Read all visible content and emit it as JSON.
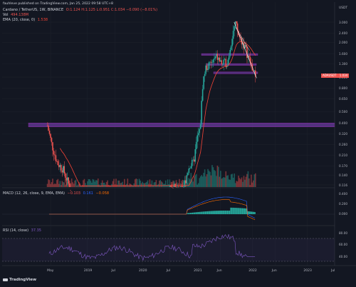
{
  "header": {
    "publisher": "fauhleve published on TradingView.com, Jan 25, 2022 09:58 UTC+8",
    "symbol": "Cardano / TetherUS, 1W, BINANCE",
    "ohlc": "O:1.124 H:1.125 L:0.951 C:1.034 −0.090 (−8.01%)",
    "vol_label": "Vol",
    "vol_value": "494.138M",
    "ema_label": "EMA (20, close, 0)",
    "ema_value": "1.538"
  },
  "price_tag": {
    "symbol": "ADAUSDT",
    "value": "1.034"
  },
  "currency": "USDT",
  "macd": {
    "label": "MACD (12, 26, close, 9, EMA, EMA)",
    "hist": "−0.103",
    "macd_value": "0.161",
    "signal_value": "−0.058",
    "ticks": [
      "0.400",
      "0.200",
      "0.000"
    ]
  },
  "rsi": {
    "label": "RSI (14, close)",
    "value": "37.35",
    "ticks": [
      "80.00",
      "60.00",
      "40.00"
    ]
  },
  "footer": {
    "brand": "TradingView"
  },
  "colors": {
    "bg": "#131722",
    "up": "#26a69a",
    "down": "#ef5350",
    "ema": "#f44336",
    "zone": "#6a3c9f",
    "macd_line": "#2962ff",
    "signal_line": "#ff6d00",
    "rsi_line": "#7e57c2",
    "white": "#ffffff"
  },
  "chart_data": [
    {
      "type": "line",
      "title": "Cardano / TetherUS, 1W, BINANCE",
      "scale": "log",
      "ylim": [
        0.1,
        3.2
      ],
      "yticks": [
        "3.000",
        "2.400",
        "2.000",
        "1.600",
        "1.300",
        "1.000",
        "0.800",
        "0.650",
        "0.500",
        "0.400",
        "0.320",
        "0.260",
        "0.210",
        "0.170",
        "0.140",
        "0.116"
      ],
      "xlabels": [
        "May",
        "2019",
        "Jul",
        "2020",
        "Jul",
        "2021",
        "Jun",
        "2022",
        "Jun",
        "2023",
        "Jul"
      ],
      "series": [
        {
          "kind": "candles",
          "x": [
            2018.27,
            2018.35,
            2018.45,
            2018.55,
            2018.65,
            2018.75,
            2018.85,
            2018.95,
            2019.05,
            2019.2,
            2019.35,
            2019.5,
            2019.65,
            2019.8,
            2019.95,
            2020.05,
            2020.2,
            2020.35,
            2020.5,
            2020.65,
            2020.75,
            2020.85,
            2020.93,
            2021.0,
            2021.05,
            2021.1,
            2021.15,
            2021.25,
            2021.35,
            2021.45,
            2021.55,
            2021.65,
            2021.7,
            2021.75,
            2021.85,
            2021.95,
            2022.0,
            2022.05
          ],
          "close": [
            0.38,
            0.26,
            0.18,
            0.16,
            0.12,
            0.085,
            0.07,
            0.045,
            0.042,
            0.06,
            0.08,
            0.06,
            0.045,
            0.04,
            0.035,
            0.05,
            0.04,
            0.05,
            0.12,
            0.1,
            0.11,
            0.17,
            0.18,
            0.3,
            0.35,
            0.9,
            1.2,
            1.3,
            1.5,
            1.3,
            1.35,
            2.5,
            2.9,
            2.3,
            1.9,
            1.4,
            1.2,
            1.034
          ]
        },
        {
          "name": "EMA (20, close, 0)",
          "value_last": 1.538
        }
      ],
      "zones": [
        {
          "low": 0.37,
          "high": 0.4
        },
        {
          "low": 1.55,
          "high": 1.6
        },
        {
          "low": 1.27,
          "high": 1.31
        },
        {
          "low": 1.07,
          "high": 1.11
        }
      ]
    }
  ]
}
